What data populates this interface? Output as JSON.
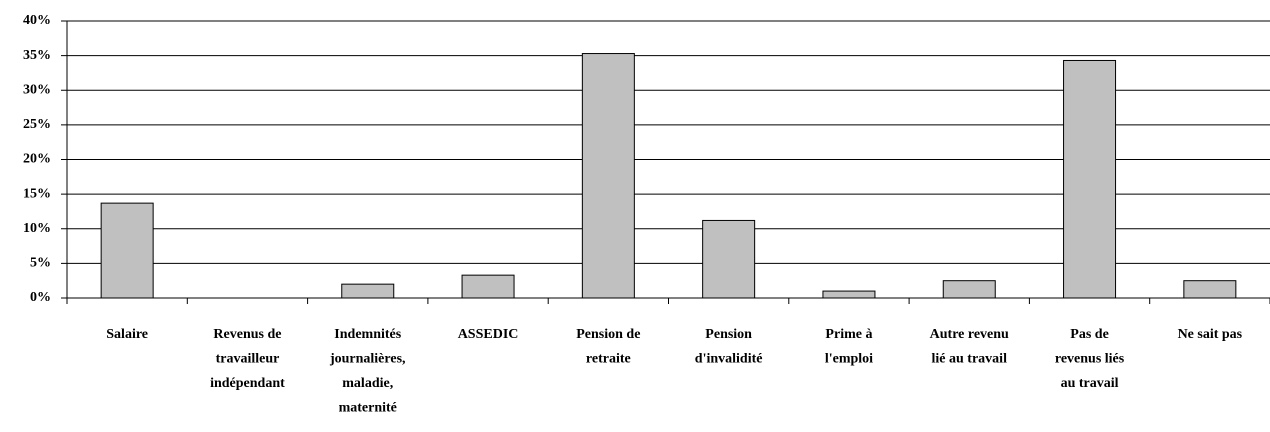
{
  "chart_data": {
    "type": "bar",
    "categories": [
      "Salaire",
      "Revenus de\ntravailleur\nindépendant",
      "Indemnités\njournalières,\nmaladie,\nmaternité",
      "ASSEDIC",
      "Pension de\nretraite",
      "Pension\nd'invalidité",
      "Prime à\nl'emploi",
      "Autre revenu\nlié au travail",
      "Pas de\nrevenus liés\nau travail",
      "Ne sait pas"
    ],
    "values": [
      13.7,
      0,
      2,
      3.3,
      35.3,
      11.2,
      1,
      2.5,
      34.3,
      2.5
    ],
    "color": "#c0c0c0",
    "ylim": [
      0,
      40
    ],
    "yticks": [
      {
        "value": 0,
        "label": "0%"
      },
      {
        "value": 5,
        "label": "5%"
      },
      {
        "value": 10,
        "label": "10%"
      },
      {
        "value": 15,
        "label": "15%"
      },
      {
        "value": 20,
        "label": "20%"
      },
      {
        "value": 25,
        "label": "25%"
      },
      {
        "value": 30,
        "label": "30%"
      },
      {
        "value": 35,
        "label": "35%"
      },
      {
        "value": 40,
        "label": "40%"
      }
    ],
    "grid": true
  }
}
